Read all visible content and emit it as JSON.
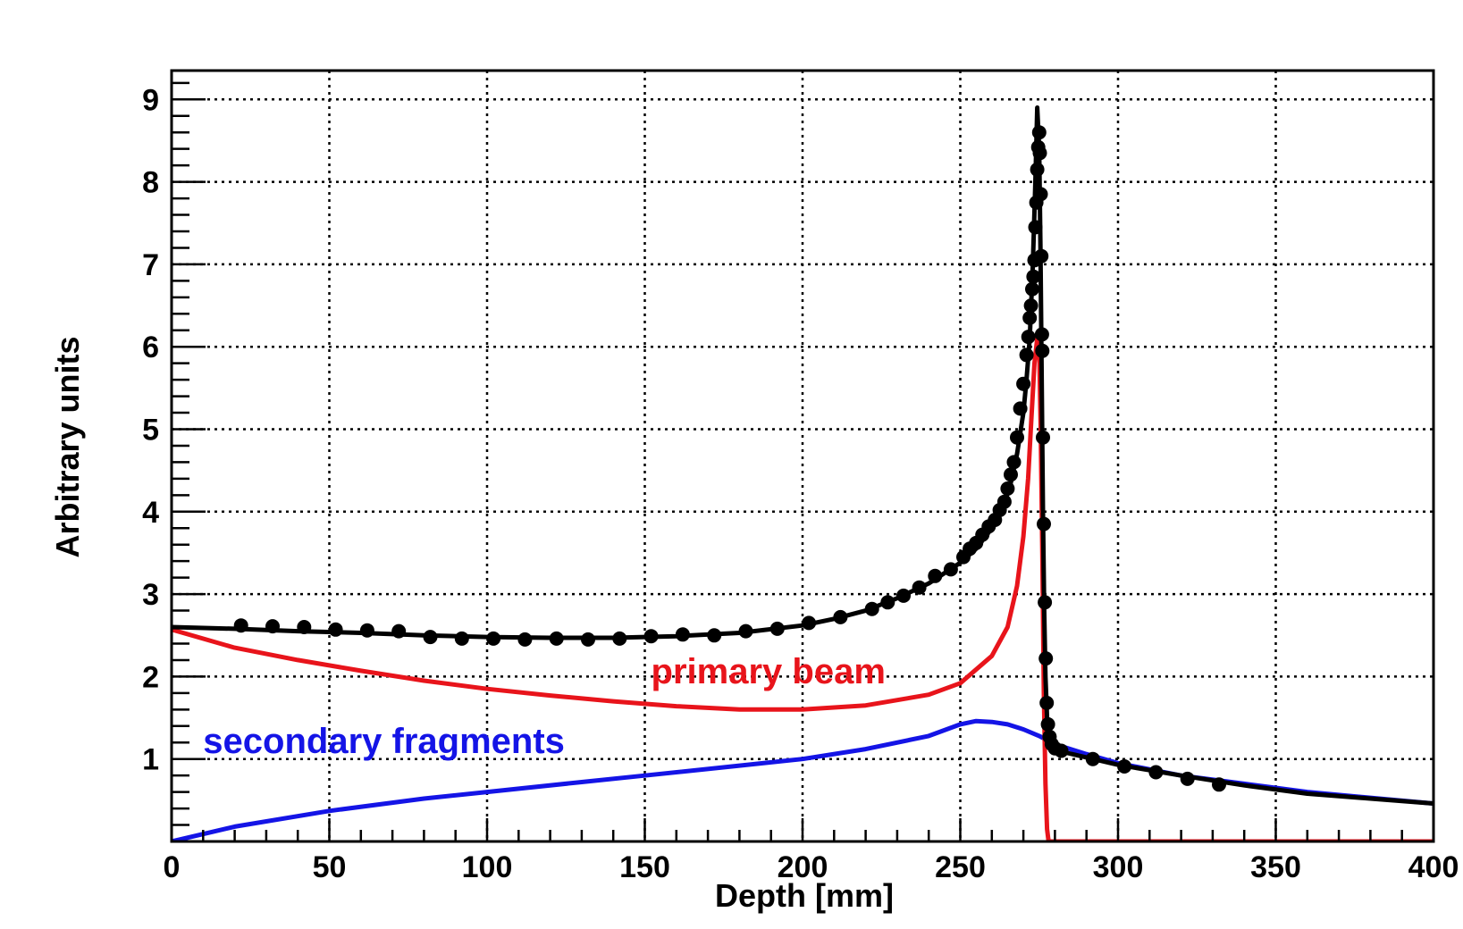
{
  "chart_data": {
    "type": "line",
    "title": "",
    "xlabel": "Depth [mm]",
    "ylabel": "Arbitrary units",
    "xlim": [
      0,
      400
    ],
    "ylim": [
      0,
      9.35
    ],
    "grid": true,
    "x_ticks": [
      0,
      50,
      100,
      150,
      200,
      250,
      300,
      350,
      400
    ],
    "y_ticks": [
      1,
      2,
      3,
      4,
      5,
      6,
      7,
      8,
      9
    ],
    "x_tick_labels": [
      "0",
      "50",
      "100",
      "150",
      "200",
      "250",
      "300",
      "350",
      "400"
    ],
    "y_tick_labels": [
      "1",
      "2",
      "3",
      "4",
      "5",
      "6",
      "7",
      "8",
      "9"
    ],
    "annotations": [
      {
        "text": "primary beam",
        "color": "#e8141b",
        "series": "primary"
      },
      {
        "text": "secondary fragments",
        "color": "#1414e6",
        "series": "secondary"
      }
    ],
    "series": [
      {
        "key": "total",
        "style": "line",
        "color": "#000000",
        "points": [
          [
            0,
            2.6
          ],
          [
            20,
            2.58
          ],
          [
            40,
            2.55
          ],
          [
            60,
            2.53
          ],
          [
            80,
            2.5
          ],
          [
            100,
            2.48
          ],
          [
            120,
            2.47
          ],
          [
            140,
            2.47
          ],
          [
            160,
            2.49
          ],
          [
            180,
            2.53
          ],
          [
            200,
            2.62
          ],
          [
            210,
            2.7
          ],
          [
            220,
            2.8
          ],
          [
            230,
            2.95
          ],
          [
            240,
            3.13
          ],
          [
            250,
            3.38
          ],
          [
            255,
            3.55
          ],
          [
            260,
            3.8
          ],
          [
            264,
            4.1
          ],
          [
            266,
            4.35
          ],
          [
            268,
            4.7
          ],
          [
            270,
            5.2
          ],
          [
            271,
            5.6
          ],
          [
            272,
            6.1
          ],
          [
            273,
            7.0
          ],
          [
            273.8,
            8.0
          ],
          [
            274.4,
            8.9
          ],
          [
            275,
            8.4
          ],
          [
            275.4,
            7.2
          ],
          [
            275.8,
            5.6
          ],
          [
            276.2,
            4.0
          ],
          [
            276.6,
            2.8
          ],
          [
            277,
            2.0
          ],
          [
            277.5,
            1.5
          ],
          [
            278,
            1.3
          ],
          [
            279,
            1.18
          ],
          [
            281,
            1.1
          ],
          [
            290,
            1.02
          ],
          [
            300,
            0.93
          ],
          [
            320,
            0.8
          ],
          [
            340,
            0.68
          ],
          [
            360,
            0.58
          ],
          [
            380,
            0.52
          ],
          [
            400,
            0.46
          ]
        ]
      },
      {
        "key": "primary",
        "style": "line",
        "color": "#e8141b",
        "points": [
          [
            0,
            2.57
          ],
          [
            20,
            2.35
          ],
          [
            40,
            2.2
          ],
          [
            60,
            2.07
          ],
          [
            80,
            1.95
          ],
          [
            100,
            1.85
          ],
          [
            120,
            1.77
          ],
          [
            140,
            1.7
          ],
          [
            160,
            1.64
          ],
          [
            180,
            1.6
          ],
          [
            200,
            1.6
          ],
          [
            220,
            1.65
          ],
          [
            240,
            1.78
          ],
          [
            250,
            1.92
          ],
          [
            260,
            2.25
          ],
          [
            265,
            2.6
          ],
          [
            268,
            3.1
          ],
          [
            270,
            3.7
          ],
          [
            271.5,
            4.4
          ],
          [
            272.5,
            5.1
          ],
          [
            273.5,
            5.8
          ],
          [
            274.4,
            6.1
          ],
          [
            275,
            6.0
          ],
          [
            275.5,
            5.0
          ],
          [
            276,
            3.5
          ],
          [
            276.5,
            1.8
          ],
          [
            277,
            0.7
          ],
          [
            277.5,
            0.15
          ],
          [
            278,
            0
          ],
          [
            300,
            0
          ],
          [
            350,
            0
          ],
          [
            400,
            0
          ]
        ]
      },
      {
        "key": "secondary",
        "style": "line",
        "color": "#1414e6",
        "points": [
          [
            0,
            0
          ],
          [
            20,
            0.18
          ],
          [
            50,
            0.37
          ],
          [
            80,
            0.52
          ],
          [
            100,
            0.6
          ],
          [
            130,
            0.72
          ],
          [
            150,
            0.8
          ],
          [
            180,
            0.92
          ],
          [
            200,
            1.0
          ],
          [
            220,
            1.12
          ],
          [
            240,
            1.28
          ],
          [
            250,
            1.42
          ],
          [
            255,
            1.46
          ],
          [
            260,
            1.45
          ],
          [
            265,
            1.42
          ],
          [
            270,
            1.36
          ],
          [
            275,
            1.28
          ],
          [
            280,
            1.18
          ],
          [
            290,
            1.06
          ],
          [
            300,
            0.95
          ],
          [
            320,
            0.8
          ],
          [
            340,
            0.7
          ],
          [
            360,
            0.6
          ],
          [
            380,
            0.53
          ],
          [
            400,
            0.46
          ]
        ]
      },
      {
        "key": "measured",
        "style": "scatter",
        "color": "#000000",
        "points": [
          [
            22,
            2.62
          ],
          [
            32,
            2.61
          ],
          [
            42,
            2.6
          ],
          [
            52,
            2.57
          ],
          [
            62,
            2.56
          ],
          [
            72,
            2.55
          ],
          [
            82,
            2.48
          ],
          [
            92,
            2.46
          ],
          [
            102,
            2.46
          ],
          [
            112,
            2.45
          ],
          [
            122,
            2.46
          ],
          [
            132,
            2.45
          ],
          [
            142,
            2.46
          ],
          [
            152,
            2.49
          ],
          [
            162,
            2.51
          ],
          [
            172,
            2.5
          ],
          [
            182,
            2.55
          ],
          [
            192,
            2.58
          ],
          [
            202,
            2.65
          ],
          [
            212,
            2.72
          ],
          [
            222,
            2.82
          ],
          [
            227,
            2.9
          ],
          [
            232,
            2.98
          ],
          [
            237,
            3.08
          ],
          [
            242,
            3.22
          ],
          [
            247,
            3.3
          ],
          [
            251,
            3.45
          ],
          [
            253,
            3.55
          ],
          [
            255,
            3.62
          ],
          [
            257,
            3.72
          ],
          [
            259,
            3.82
          ],
          [
            261,
            3.9
          ],
          [
            262.5,
            4.02
          ],
          [
            264,
            4.12
          ],
          [
            265,
            4.28
          ],
          [
            266,
            4.45
          ],
          [
            267,
            4.6
          ],
          [
            268,
            4.9
          ],
          [
            269,
            5.25
          ],
          [
            270,
            5.55
          ],
          [
            271,
            5.9
          ],
          [
            271.6,
            6.12
          ],
          [
            272,
            6.35
          ],
          [
            272.4,
            6.5
          ],
          [
            272.8,
            6.7
          ],
          [
            273.2,
            6.85
          ],
          [
            273.5,
            7.05
          ],
          [
            273.8,
            7.45
          ],
          [
            274.1,
            7.75
          ],
          [
            274.4,
            8.15
          ],
          [
            274.7,
            8.42
          ],
          [
            275,
            8.6
          ],
          [
            275.2,
            8.35
          ],
          [
            275.5,
            7.85
          ],
          [
            275.7,
            7.1
          ],
          [
            275.9,
            6.15
          ],
          [
            276,
            5.95
          ],
          [
            276.2,
            4.9
          ],
          [
            276.5,
            3.85
          ],
          [
            276.8,
            2.9
          ],
          [
            277.1,
            2.22
          ],
          [
            277.4,
            1.68
          ],
          [
            277.8,
            1.42
          ],
          [
            278.3,
            1.27
          ],
          [
            279,
            1.18
          ],
          [
            280,
            1.13
          ],
          [
            282,
            1.1
          ],
          [
            292,
            1.0
          ],
          [
            302,
            0.91
          ],
          [
            312,
            0.84
          ],
          [
            322,
            0.76
          ],
          [
            332,
            0.69
          ]
        ]
      }
    ]
  }
}
